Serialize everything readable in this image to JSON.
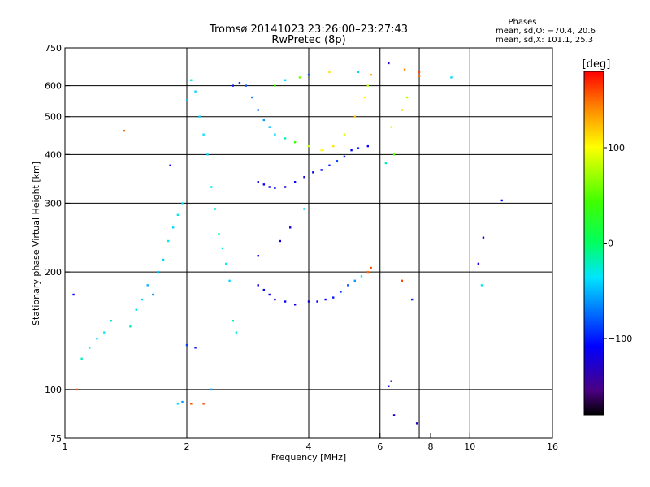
{
  "chart_data": {
    "type": "scatter",
    "title": "Tromsø 20141023 23:26:00–23:27:43",
    "subtitle": "RwPretec (8p)",
    "xlabel": "Frequency [MHz]",
    "ylabel": "Stationary phase Virtual Height [km]",
    "xscale": "log",
    "yscale": "log",
    "xlim": [
      1,
      16
    ],
    "ylim": [
      75,
      750
    ],
    "x_ticks": [
      1,
      2,
      4,
      6,
      8,
      10,
      16
    ],
    "x_tick_labels": [
      "1",
      "2",
      "4",
      "6",
      "8",
      "10",
      "16"
    ],
    "x_grid": [
      2,
      4,
      6,
      7.5,
      10
    ],
    "y_ticks": [
      75,
      100,
      200,
      300,
      400,
      500,
      600,
      750
    ],
    "y_tick_labels": [
      "75",
      "100",
      "200",
      "300",
      "400",
      "500",
      "600",
      "750"
    ],
    "y_grid": [
      100,
      200,
      300,
      400,
      500,
      600
    ],
    "grid": true,
    "legend": {
      "title": "Phases",
      "lines": [
        "mean, sd,O: −70.4, 20.6",
        "mean, sd,X: 101.1, 25.3"
      ],
      "position": "top-right"
    },
    "colorbar": {
      "label": "[deg]",
      "range": [
        -180,
        180
      ],
      "ticks": [
        100,
        0,
        -100
      ],
      "tick_labels": [
        "100",
        "0",
        "−100"
      ],
      "position": "right"
    },
    "points": [
      [
        1.05,
        175,
        -110
      ],
      [
        1.07,
        100,
        160
      ],
      [
        1.1,
        120,
        -20
      ],
      [
        1.15,
        128,
        -30
      ],
      [
        1.2,
        135,
        -40
      ],
      [
        1.25,
        140,
        -35
      ],
      [
        1.3,
        150,
        -25
      ],
      [
        1.4,
        460,
        150
      ],
      [
        1.45,
        145,
        -20
      ],
      [
        1.5,
        160,
        -30
      ],
      [
        1.55,
        170,
        -40
      ],
      [
        1.6,
        185,
        -50
      ],
      [
        1.65,
        175,
        -60
      ],
      [
        1.7,
        200,
        -45
      ],
      [
        1.75,
        215,
        -40
      ],
      [
        1.8,
        240,
        -35
      ],
      [
        1.82,
        375,
        -110
      ],
      [
        1.85,
        260,
        -40
      ],
      [
        1.9,
        280,
        -30
      ],
      [
        1.95,
        300,
        -35
      ],
      [
        1.9,
        92,
        -40
      ],
      [
        1.95,
        93,
        -60
      ],
      [
        2.05,
        92,
        160
      ],
      [
        2.05,
        620,
        -30
      ],
      [
        2.1,
        580,
        -40
      ],
      [
        2.0,
        550,
        -45
      ],
      [
        2.15,
        500,
        -40
      ],
      [
        2.2,
        450,
        -35
      ],
      [
        2.25,
        400,
        -40
      ],
      [
        2.3,
        330,
        -30
      ],
      [
        2.35,
        290,
        -30
      ],
      [
        2.4,
        250,
        -20
      ],
      [
        2.45,
        230,
        -30
      ],
      [
        2.5,
        210,
        -25
      ],
      [
        2.55,
        190,
        -40
      ],
      [
        2.6,
        150,
        -20
      ],
      [
        2.65,
        140,
        -30
      ],
      [
        2.6,
        600,
        -100
      ],
      [
        2.7,
        610,
        -90
      ],
      [
        2.8,
        600,
        -80
      ],
      [
        2.9,
        560,
        -70
      ],
      [
        3.0,
        520,
        -70
      ],
      [
        3.1,
        490,
        -60
      ],
      [
        3.2,
        470,
        -50
      ],
      [
        3.3,
        450,
        -40
      ],
      [
        3.5,
        440,
        -20
      ],
      [
        3.7,
        430,
        40
      ],
      [
        4.0,
        420,
        80
      ],
      [
        4.3,
        410,
        100
      ],
      [
        4.6,
        420,
        110
      ],
      [
        4.9,
        450,
        90
      ],
      [
        5.2,
        500,
        120
      ],
      [
        5.5,
        560,
        100
      ],
      [
        5.6,
        600,
        80
      ],
      [
        5.7,
        640,
        130
      ],
      [
        5.3,
        650,
        -40
      ],
      [
        4.5,
        650,
        110
      ],
      [
        4.0,
        640,
        -80
      ],
      [
        3.8,
        630,
        60
      ],
      [
        3.5,
        620,
        -40
      ],
      [
        3.3,
        600,
        50
      ],
      [
        3.0,
        340,
        -120
      ],
      [
        3.1,
        335,
        -110
      ],
      [
        3.2,
        330,
        -120
      ],
      [
        3.3,
        328,
        -100
      ],
      [
        3.5,
        330,
        -120
      ],
      [
        3.7,
        340,
        -110
      ],
      [
        3.9,
        350,
        -120
      ],
      [
        4.1,
        360,
        -110
      ],
      [
        4.3,
        365,
        -110
      ],
      [
        4.5,
        375,
        -100
      ],
      [
        4.7,
        385,
        -90
      ],
      [
        4.9,
        395,
        -100
      ],
      [
        5.1,
        410,
        -110
      ],
      [
        5.3,
        415,
        -100
      ],
      [
        5.6,
        420,
        -110
      ],
      [
        3.0,
        185,
        -120
      ],
      [
        3.1,
        180,
        -110
      ],
      [
        3.2,
        175,
        -120
      ],
      [
        3.3,
        170,
        -130
      ],
      [
        3.5,
        168,
        -110
      ],
      [
        3.7,
        165,
        -120
      ],
      [
        4.0,
        168,
        -120
      ],
      [
        4.2,
        168,
        -110
      ],
      [
        4.4,
        170,
        -110
      ],
      [
        4.6,
        172,
        -100
      ],
      [
        4.8,
        178,
        -90
      ],
      [
        5.0,
        185,
        -80
      ],
      [
        5.2,
        190,
        -60
      ],
      [
        5.4,
        195,
        -20
      ],
      [
        5.6,
        200,
        150
      ],
      [
        5.7,
        205,
        160
      ],
      [
        3.6,
        260,
        -120
      ],
      [
        3.4,
        240,
        -120
      ],
      [
        3.0,
        220,
        -110
      ],
      [
        3.9,
        290,
        -40
      ],
      [
        6.3,
        685,
        -120
      ],
      [
        6.9,
        660,
        140
      ],
      [
        7.5,
        650,
        160
      ],
      [
        7.5,
        635,
        150
      ],
      [
        9.0,
        630,
        -40
      ],
      [
        6.2,
        380,
        -20
      ],
      [
        6.5,
        400,
        50
      ],
      [
        6.4,
        470,
        90
      ],
      [
        6.8,
        520,
        110
      ],
      [
        7.0,
        560,
        80
      ],
      [
        6.8,
        190,
        160
      ],
      [
        6.4,
        105,
        -100
      ],
      [
        6.3,
        102,
        -110
      ],
      [
        6.5,
        86,
        -120
      ],
      [
        7.4,
        82,
        -130
      ],
      [
        7.2,
        170,
        -100
      ],
      [
        10.5,
        210,
        -120
      ],
      [
        10.8,
        245,
        -110
      ],
      [
        10.7,
        185,
        -30
      ],
      [
        12.0,
        305,
        -110
      ],
      [
        2.3,
        100,
        -60
      ],
      [
        2.2,
        92,
        160
      ],
      [
        2.0,
        130,
        -90
      ],
      [
        2.1,
        128,
        -100
      ]
    ]
  }
}
